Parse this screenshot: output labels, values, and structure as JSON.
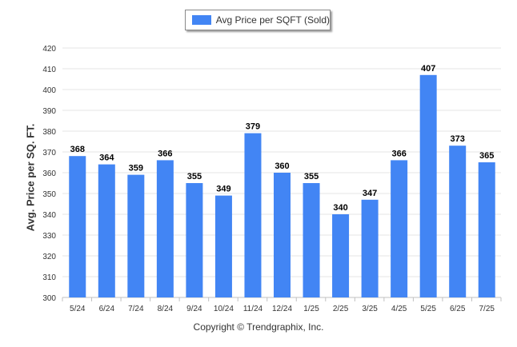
{
  "chart_data": {
    "type": "bar",
    "categories": [
      "5/24",
      "6/24",
      "7/24",
      "8/24",
      "9/24",
      "10/24",
      "11/24",
      "12/24",
      "1/25",
      "2/25",
      "3/25",
      "4/25",
      "5/25",
      "6/25",
      "7/25"
    ],
    "series": [
      {
        "name": "Avg Price per SQFT (Sold)",
        "values": [
          368,
          364,
          359,
          366,
          355,
          349,
          379,
          360,
          355,
          340,
          347,
          366,
          407,
          373,
          365
        ]
      }
    ],
    "ylabel": "Avg. Price per SQ. FT.",
    "xlabel": "",
    "ylim": [
      300,
      420
    ],
    "yticks": [
      300,
      310,
      320,
      330,
      340,
      350,
      360,
      370,
      380,
      390,
      400,
      410,
      420
    ],
    "grid": true,
    "legend_position": "top-center",
    "bar_color": "#4285f4"
  },
  "footer": {
    "copyright": "Copyright © Trendgraphix, Inc."
  }
}
